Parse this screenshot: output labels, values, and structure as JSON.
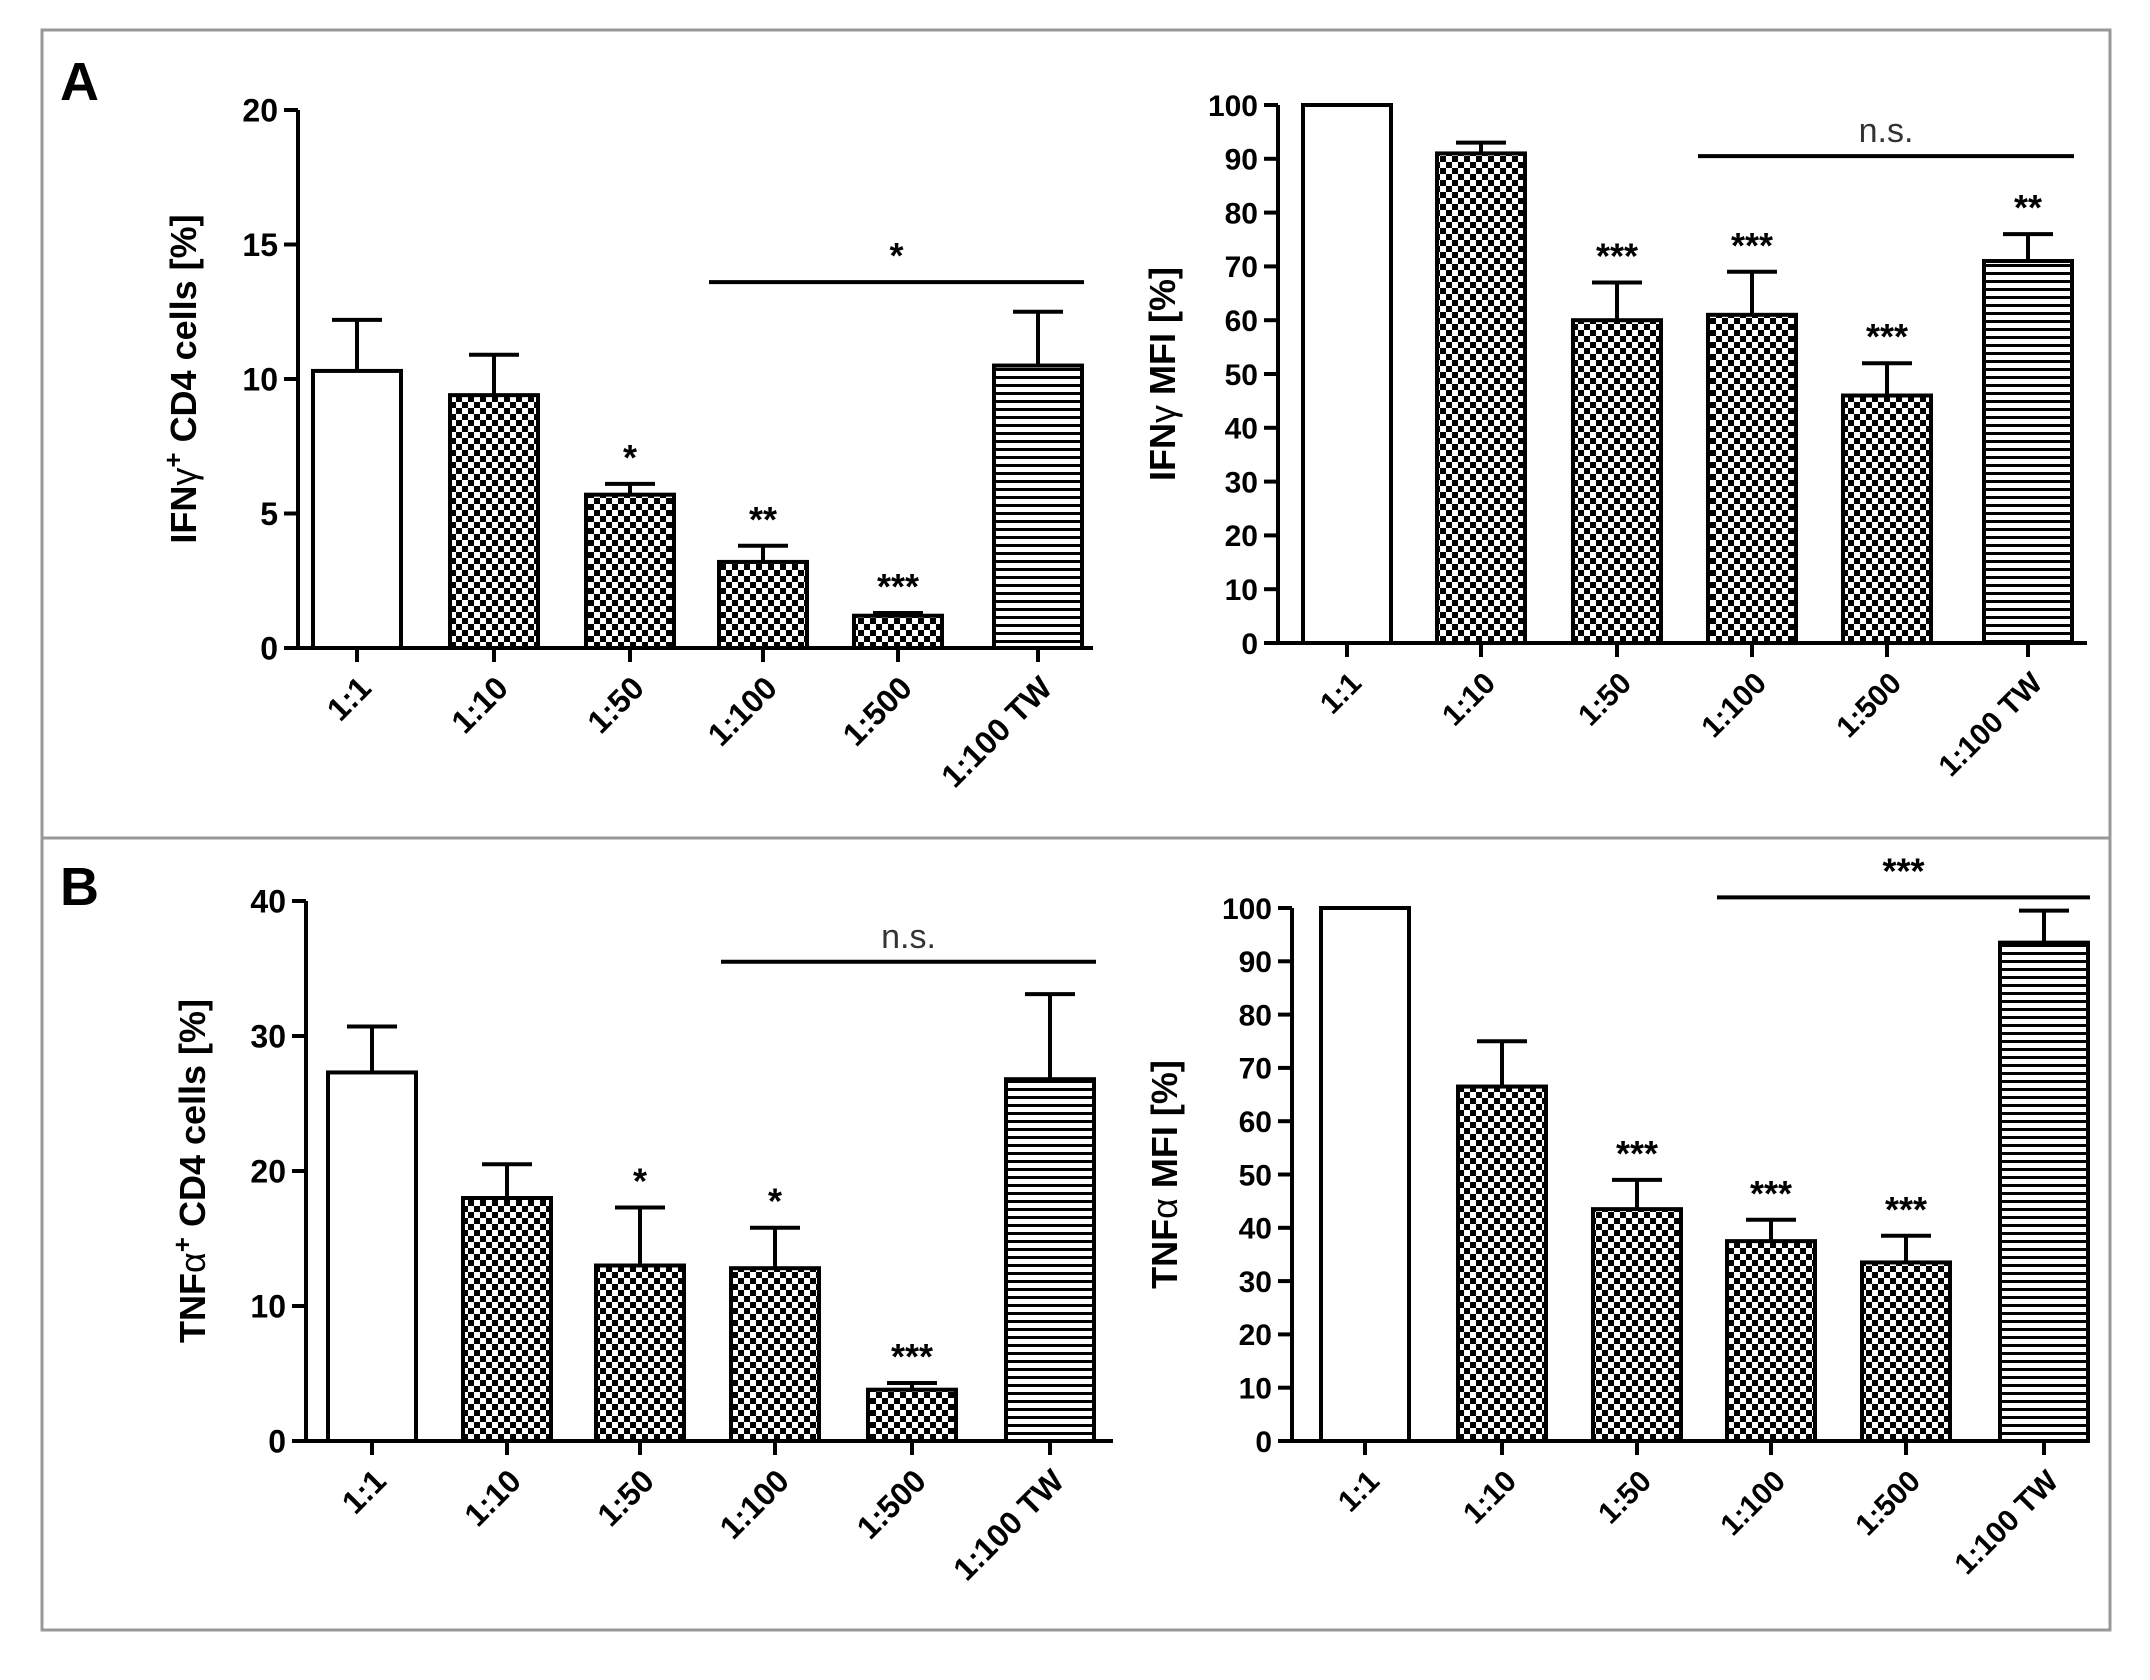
{
  "figure": {
    "panel_labels": [
      "A",
      "B"
    ]
  },
  "colors": {
    "bar_outline": "#000000",
    "frame": "#999999",
    "text": "#000000"
  },
  "chart_data": [
    {
      "type": "bar",
      "panel": "A",
      "ylabel_parts": [
        "IFN",
        "γ",
        "+",
        " CD4 cells [%]"
      ],
      "ylim": [
        0,
        20
      ],
      "yticks": [
        0,
        5,
        10,
        15,
        20
      ],
      "categories": [
        "1:1",
        "1:10",
        "1:50",
        "1:100",
        "1:500",
        "1:100 TW"
      ],
      "values": [
        10.3,
        9.4,
        5.7,
        3.2,
        1.2,
        10.5
      ],
      "errors": [
        1.9,
        1.5,
        0.4,
        0.6,
        0.1,
        2.0
      ],
      "fills": [
        "open",
        "check",
        "check",
        "check",
        "check",
        "hstripe"
      ],
      "significance": [
        "",
        "",
        "*",
        "**",
        "***",
        ""
      ],
      "bracket": {
        "label": "*",
        "from": 3,
        "to": 5,
        "y": 13.6
      }
    },
    {
      "type": "bar",
      "panel": "A",
      "ylabel_parts": [
        "IFN",
        "γ",
        "",
        " MFI [%]"
      ],
      "ylim": [
        0,
        100
      ],
      "yticks": [
        0,
        10,
        20,
        30,
        40,
        50,
        60,
        70,
        80,
        90,
        100
      ],
      "categories": [
        "1:1",
        "1:10",
        "1:50",
        "1:100",
        "1:500",
        "1:100 TW"
      ],
      "values": [
        100,
        91,
        60,
        61,
        46,
        71
      ],
      "errors": [
        0,
        2,
        7,
        8,
        6,
        5
      ],
      "fills": [
        "open",
        "check",
        "check",
        "check",
        "check",
        "hstripe"
      ],
      "significance": [
        "",
        "",
        "***",
        "***",
        "***",
        "**"
      ],
      "bracket": {
        "label": "n.s.",
        "from": 3,
        "to": 5,
        "y": 90.5
      }
    },
    {
      "type": "bar",
      "panel": "B",
      "ylabel_parts": [
        "TNF",
        "α",
        "+",
        " CD4  cells [%]"
      ],
      "ylim": [
        0,
        40
      ],
      "yticks": [
        0,
        10,
        20,
        30,
        40
      ],
      "categories": [
        "1:1",
        "1:10",
        "1:50",
        "1:100",
        "1:500",
        "1:100 TW"
      ],
      "values": [
        27.3,
        18,
        13,
        12.8,
        3.8,
        26.8
      ],
      "errors": [
        3.4,
        2.5,
        4.3,
        3.0,
        0.5,
        6.3
      ],
      "fills": [
        "open",
        "check",
        "check",
        "check",
        "check",
        "hstripe"
      ],
      "significance": [
        "",
        "",
        "*",
        "*",
        "***",
        ""
      ],
      "bracket": {
        "label": "n.s.",
        "from": 3,
        "to": 5,
        "y": 35.5
      }
    },
    {
      "type": "bar",
      "panel": "B",
      "ylabel_parts": [
        "TNF",
        "α",
        "",
        " MFI [%]"
      ],
      "ylim": [
        0,
        100
      ],
      "yticks": [
        0,
        10,
        20,
        30,
        40,
        50,
        60,
        70,
        80,
        90,
        100
      ],
      "categories": [
        "1:1",
        "1:10",
        "1:50",
        "1:100",
        "1:500",
        "1:100 TW"
      ],
      "values": [
        100,
        66.5,
        43.5,
        37.5,
        33.5,
        93.5
      ],
      "errors": [
        0,
        8.5,
        5.5,
        4,
        5,
        6
      ],
      "fills": [
        "open",
        "check",
        "check",
        "check",
        "check",
        "hstripe"
      ],
      "significance": [
        "",
        "",
        "***",
        "***",
        "***",
        ""
      ],
      "bracket": {
        "label": "***",
        "from": 3,
        "to": 5,
        "y": 102
      }
    }
  ]
}
